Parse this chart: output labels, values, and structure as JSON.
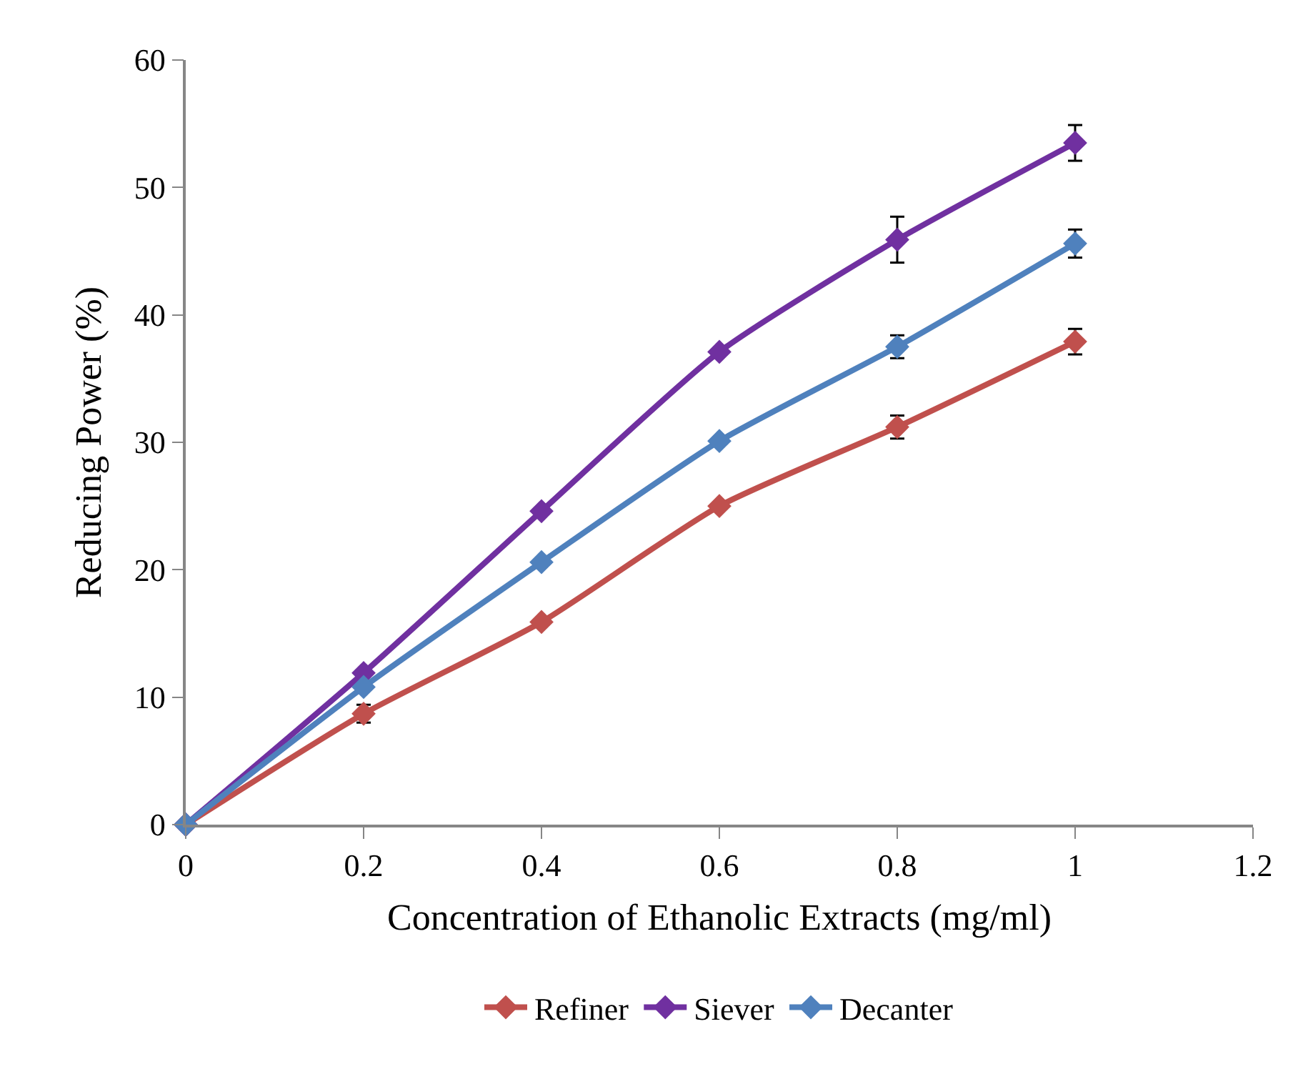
{
  "chart_data": {
    "type": "line",
    "xlabel": "Concentration of Ethanolic Extracts (mg/ml)",
    "ylabel": "Reducing Power (%)",
    "x": [
      0,
      0.2,
      0.4,
      0.6,
      0.8,
      1
    ],
    "series": [
      {
        "name": "Refiner",
        "color": "#c0504d",
        "values": [
          0,
          8.7,
          15.9,
          25.0,
          31.2,
          37.9
        ],
        "errors": [
          null,
          0.7,
          null,
          null,
          0.9,
          1.0
        ]
      },
      {
        "name": "Siever",
        "color": "#7030a0",
        "values": [
          0,
          11.9,
          24.6,
          37.1,
          45.9,
          53.5
        ],
        "errors": [
          null,
          null,
          null,
          null,
          1.8,
          1.4
        ]
      },
      {
        "name": "Decanter",
        "color": "#4f81bd",
        "values": [
          0,
          10.8,
          20.6,
          30.1,
          37.5,
          45.6
        ],
        "errors": [
          null,
          null,
          null,
          null,
          0.9,
          1.1
        ]
      }
    ],
    "xlim": [
      0,
      1.2
    ],
    "xticks": [
      0,
      0.2,
      0.4,
      0.6,
      0.8,
      1,
      1.2
    ],
    "ylim": [
      0,
      60
    ],
    "yticks": [
      0,
      10,
      20,
      30,
      40,
      50,
      60
    ],
    "legend": "bottom",
    "marker": "diamond",
    "line_style": "solid"
  }
}
